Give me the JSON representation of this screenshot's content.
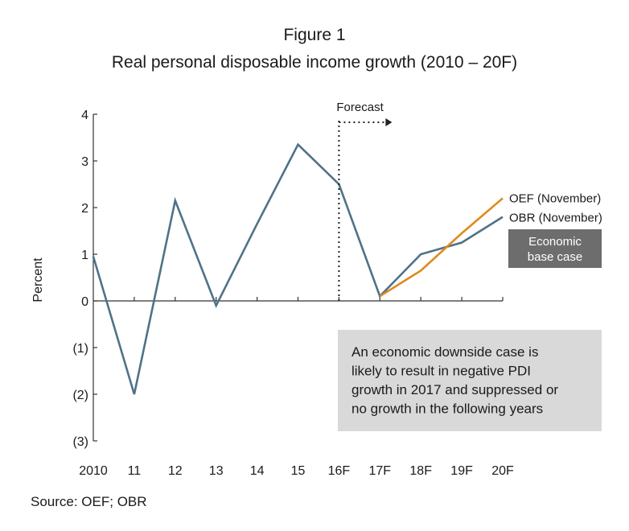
{
  "figure_label": "Figure 1",
  "chart_data": {
    "type": "line",
    "title": "Real personal disposable income growth (2010 – 20F)",
    "xlabel": "",
    "ylabel": "Percent",
    "categories": [
      "2010",
      "11",
      "12",
      "13",
      "14",
      "15",
      "16F",
      "17F",
      "18F",
      "19F",
      "20F"
    ],
    "ylim": [
      -3,
      4
    ],
    "ytick_values": [
      4,
      3,
      2,
      1,
      0,
      -1,
      -2,
      -3
    ],
    "ytick_labels": [
      "4",
      "3",
      "2",
      "1",
      "0",
      "(1)",
      "(2)",
      "(3)"
    ],
    "forecast_label": "Forecast",
    "forecast_start": "16F",
    "series": [
      {
        "name": "OBR (November)",
        "color": "#4f7288",
        "values": [
          0.95,
          -2.0,
          2.15,
          -0.1,
          1.65,
          3.35,
          2.5,
          0.1,
          1.0,
          1.25,
          1.8
        ]
      },
      {
        "name": "OEF (November)",
        "color": "#e08a1e",
        "values": [
          null,
          null,
          null,
          null,
          null,
          null,
          null,
          0.1,
          0.65,
          1.45,
          2.2
        ]
      }
    ],
    "annotations": {
      "base_case": "Economic base case",
      "downside_case": "An economic downside case is likely to result in negative PDI growth in 2017 and suppressed or no growth in the following years"
    },
    "grid": false
  },
  "source": "Source: OEF; OBR"
}
